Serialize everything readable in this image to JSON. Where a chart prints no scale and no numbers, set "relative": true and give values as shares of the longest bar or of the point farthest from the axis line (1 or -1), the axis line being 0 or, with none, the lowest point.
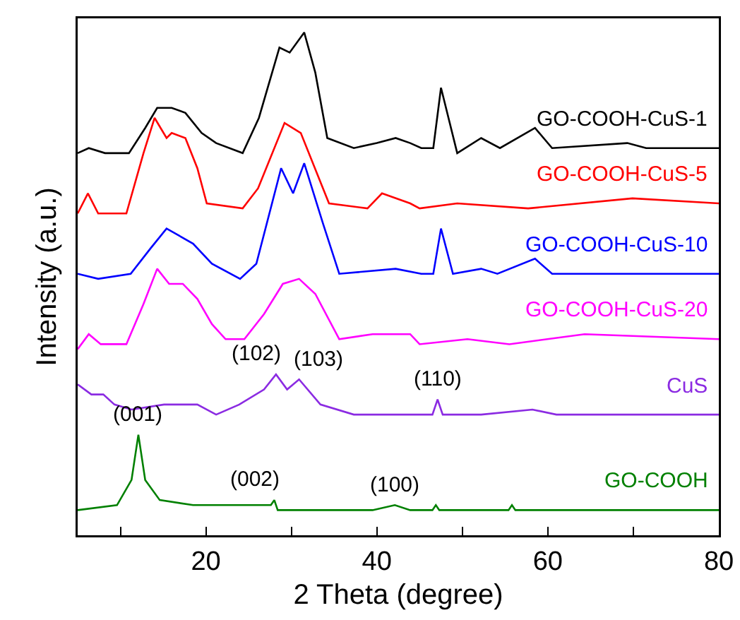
{
  "chart_data": {
    "type": "line",
    "relative": true,
    "xlabel": "2 Theta (degree)",
    "ylabel": "Intensity (a.u.)",
    "xlim": [
      5,
      80
    ],
    "xticks": [
      {
        "value": 10,
        "label": null
      },
      20,
      {
        "value": 30,
        "label": null
      },
      40,
      {
        "value": 50,
        "label": null
      },
      60,
      {
        "value": 70,
        "label": null
      },
      80
    ],
    "grid": false,
    "legend": false,
    "marker": "none",
    "line_style": "solid",
    "series": [
      {
        "name": "GO-COOH-CuS-1",
        "color": "#000000",
        "x": [
          5,
          6.3,
          8.2,
          11,
          12.9,
          14.3,
          16,
          17.6,
          19.5,
          21.2,
          24.3,
          26.2,
          28.6,
          29.8,
          31.5,
          32.8,
          34.2,
          37.3,
          40,
          42.2,
          43.9,
          45.2,
          46.6,
          47.5,
          49.4,
          52.2,
          54.4,
          58.5,
          60.5,
          69.3,
          71.5,
          80
        ],
        "values": [
          0.76,
          0.77,
          0.76,
          0.76,
          0.81,
          0.85,
          0.85,
          0.84,
          0.8,
          0.78,
          0.76,
          0.83,
          0.97,
          0.96,
          1,
          0.92,
          0.79,
          0.77,
          0.78,
          0.79,
          0.78,
          0.77,
          0.77,
          0.89,
          0.76,
          0.79,
          0.77,
          0.81,
          0.77,
          0.78,
          0.77,
          0.77
        ]
      },
      {
        "name": "GO-COOH-CuS-5",
        "color": "#ff0000",
        "x": [
          5,
          6.2,
          7.4,
          10.7,
          12.7,
          14,
          15.4,
          16,
          17.6,
          19,
          20.1,
          24.3,
          26.1,
          29.2,
          31.1,
          34.4,
          38.9,
          40.6,
          43.9,
          45,
          49.4,
          57.7,
          69.9,
          80
        ],
        "values": [
          0.64,
          0.68,
          0.64,
          0.64,
          0.76,
          0.83,
          0.79,
          0.8,
          0.79,
          0.73,
          0.66,
          0.65,
          0.69,
          0.82,
          0.8,
          0.66,
          0.65,
          0.68,
          0.66,
          0.65,
          0.66,
          0.65,
          0.67,
          0.66
        ]
      },
      {
        "name": "GO-COOH-CuS-10",
        "color": "#0000ff",
        "x": [
          5,
          7.4,
          11.2,
          13.5,
          15.4,
          18.5,
          20.7,
          24,
          25.9,
          28.8,
          30.2,
          31.5,
          33.7,
          35.6,
          42.2,
          45.2,
          46.6,
          47.5,
          48.9,
          52.2,
          54.1,
          58.5,
          60.5,
          80
        ],
        "values": [
          0.52,
          0.51,
          0.52,
          0.57,
          0.61,
          0.58,
          0.54,
          0.51,
          0.54,
          0.73,
          0.68,
          0.74,
          0.62,
          0.52,
          0.53,
          0.52,
          0.52,
          0.61,
          0.52,
          0.53,
          0.52,
          0.55,
          0.52,
          0.52
        ]
      },
      {
        "name": "GO-COOH-CuS-20",
        "color": "#ff00ff",
        "x": [
          5,
          6.3,
          7.7,
          10.7,
          12.7,
          14.3,
          15.7,
          17.3,
          19,
          20.7,
          22.3,
          24.5,
          26.8,
          29,
          30.9,
          32.8,
          35.6,
          39.5,
          43.9,
          45,
          50.6,
          55.5,
          64.3,
          80
        ],
        "values": [
          0.37,
          0.4,
          0.38,
          0.38,
          0.46,
          0.53,
          0.5,
          0.5,
          0.47,
          0.42,
          0.39,
          0.39,
          0.44,
          0.5,
          0.51,
          0.48,
          0.39,
          0.4,
          0.4,
          0.38,
          0.39,
          0.38,
          0.4,
          0.39
        ]
      },
      {
        "name": "CuS",
        "color": "#8b2be2",
        "x": [
          5,
          6.6,
          8,
          9.3,
          11.3,
          15.1,
          19,
          21.2,
          23.9,
          26.8,
          28.2,
          29.5,
          30.9,
          33.4,
          37.3,
          44.4,
          46.5,
          47.1,
          47.7,
          52.2,
          58.2,
          61,
          80
        ],
        "values": [
          0.3,
          0.28,
          0.28,
          0.26,
          0.25,
          0.26,
          0.26,
          0.24,
          0.26,
          0.29,
          0.32,
          0.29,
          0.31,
          0.26,
          0.24,
          0.24,
          0.24,
          0.27,
          0.24,
          0.24,
          0.25,
          0.24,
          0.24
        ]
      },
      {
        "name": "GO-COOH",
        "color": "#008000",
        "x": [
          5,
          9.6,
          11.3,
          12.1,
          12.9,
          14.6,
          18.5,
          25.1,
          27.6,
          28,
          28.4,
          35,
          39.5,
          42.1,
          43.9,
          46.5,
          46.9,
          47.3,
          55.4,
          55.8,
          56.2,
          80
        ],
        "values": [
          0.05,
          0.06,
          0.11,
          0.2,
          0.11,
          0.07,
          0.06,
          0.06,
          0.06,
          0.07,
          0.05,
          0.05,
          0.05,
          0.06,
          0.05,
          0.05,
          0.06,
          0.05,
          0.05,
          0.06,
          0.05,
          0.05
        ]
      }
    ],
    "annotations": [
      {
        "text": "(001)",
        "x": 12.1,
        "y": 0.2
      },
      {
        "text": "(002)",
        "x": 28,
        "y": 0.07
      },
      {
        "text": "(100)",
        "x": 42.1,
        "y": 0.06
      },
      {
        "text": "(102)",
        "x": 28.2,
        "y": 0.32
      },
      {
        "text": "(103)",
        "x": 30.9,
        "y": 0.31
      },
      {
        "text": "(110)",
        "x": 47.1,
        "y": 0.27
      }
    ]
  }
}
